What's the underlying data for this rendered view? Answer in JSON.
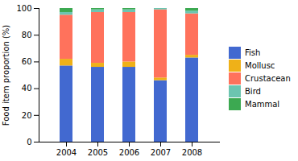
{
  "chart_data": {
    "type": "bar",
    "stacked": true,
    "categories": [
      "2004",
      "2005",
      "2006",
      "2007",
      "2008"
    ],
    "series": [
      {
        "name": "Fish",
        "values": [
          57,
          56,
          56,
          46,
          63
        ]
      },
      {
        "name": "Mollusc",
        "values": [
          5,
          3,
          4,
          2,
          2
        ]
      },
      {
        "name": "Crustacean",
        "values": [
          33,
          38,
          37,
          51,
          31
        ]
      },
      {
        "name": "Bird",
        "values": [
          2,
          2,
          2,
          1,
          2
        ]
      },
      {
        "name": "Mammal",
        "values": [
          3,
          1,
          1,
          0,
          2
        ]
      }
    ],
    "ylabel": "Food item proportion (%)",
    "ylim": [
      0,
      100
    ],
    "yticks": [
      0,
      20,
      40,
      60,
      80,
      100
    ],
    "grid": false,
    "legend": "right"
  }
}
